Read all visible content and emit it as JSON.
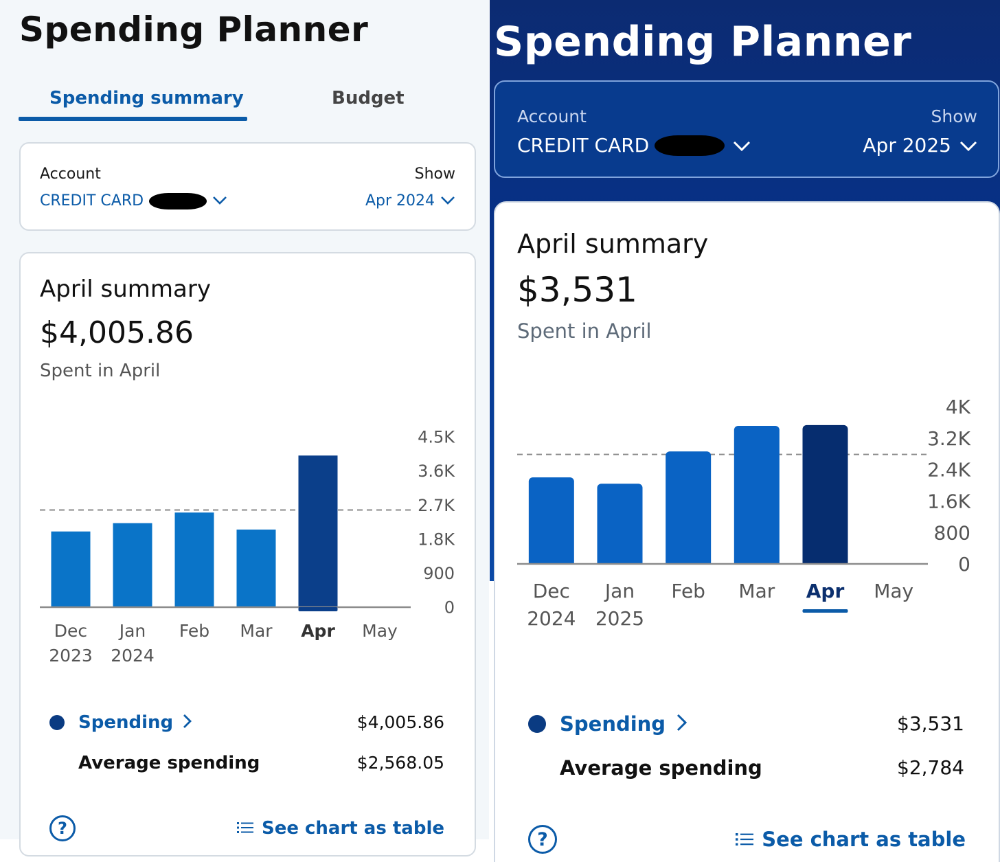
{
  "left": {
    "app_title": "Spending Planner",
    "tabs": [
      {
        "label": "Spending summary",
        "active": true
      },
      {
        "label": "Budget",
        "active": false
      }
    ],
    "account_label": "Account",
    "account_value": "CREDIT CARD",
    "show_label": "Show",
    "show_value": "Apr 2024",
    "summary_title": "April summary",
    "summary_amount": "$4,005.86",
    "summary_sub": "Spent in April",
    "legend": {
      "spending_label": "Spending",
      "spending_value": "$4,005.86",
      "average_label": "Average spending",
      "average_value": "$2,568.05"
    },
    "help_glyph": "?",
    "table_link": "See chart as table"
  },
  "right": {
    "app_title": "Spending Planner",
    "account_label": "Account",
    "account_value": "CREDIT CARD",
    "show_label": "Show",
    "show_value": "Apr 2025",
    "summary_title": "April summary",
    "summary_amount": "$3,531",
    "summary_sub": "Spent in April",
    "legend": {
      "spending_label": "Spending",
      "spending_value": "$3,531",
      "average_label": "Average spending",
      "average_value": "$2,784"
    },
    "help_glyph": "?",
    "table_link": "See chart as table"
  },
  "colors": {
    "brand_blue": "#0b5ba8",
    "bar_blue_left": "#0a74c8",
    "bar_selected_left": "#0b3f8a",
    "bar_blue_right": "#0a63c4",
    "bar_selected_right": "#062d6f",
    "banner_navy": "#06328a"
  },
  "icons": [
    "chevron-down-icon",
    "chevron-right-icon",
    "help-circle-icon",
    "list-icon"
  ],
  "chart_data": [
    {
      "type": "bar",
      "categories": [
        "Dec 2023",
        "Jan 2024",
        "Feb 2024",
        "Mar 2024",
        "Apr 2024",
        "May 2024"
      ],
      "category_lines": [
        [
          "Dec",
          "2023"
        ],
        [
          "Jan",
          "2024"
        ],
        [
          "Feb",
          ""
        ],
        [
          "Mar",
          ""
        ],
        [
          "Apr",
          ""
        ],
        [
          "May",
          ""
        ]
      ],
      "values": [
        2000,
        2220,
        2500,
        2050,
        4005.86,
        null
      ],
      "selected_index": 4,
      "average": 2568.05,
      "ylim": [
        0,
        4500
      ],
      "yticks": [
        "4.5K",
        "3.6K",
        "2.7K",
        "1.8K",
        "900",
        "0"
      ],
      "ytick_values": [
        4500,
        3600,
        2700,
        1800,
        900,
        0
      ]
    },
    {
      "type": "bar",
      "categories": [
        "Dec 2024",
        "Jan 2025",
        "Feb 2025",
        "Mar 2025",
        "Apr 2025",
        "May 2025"
      ],
      "category_lines": [
        [
          "Dec",
          "2024"
        ],
        [
          "Jan",
          "2025"
        ],
        [
          "Feb",
          ""
        ],
        [
          "Mar",
          ""
        ],
        [
          "Apr",
          ""
        ],
        [
          "May",
          ""
        ]
      ],
      "values": [
        2200,
        2040,
        2860,
        3510,
        3531,
        null
      ],
      "selected_index": 4,
      "average": 2784,
      "ylim": [
        0,
        4000
      ],
      "yticks": [
        "4K",
        "3.2K",
        "2.4K",
        "1.6K",
        "800",
        "0"
      ],
      "ytick_values": [
        4000,
        3200,
        2400,
        1600,
        800,
        0
      ]
    }
  ]
}
